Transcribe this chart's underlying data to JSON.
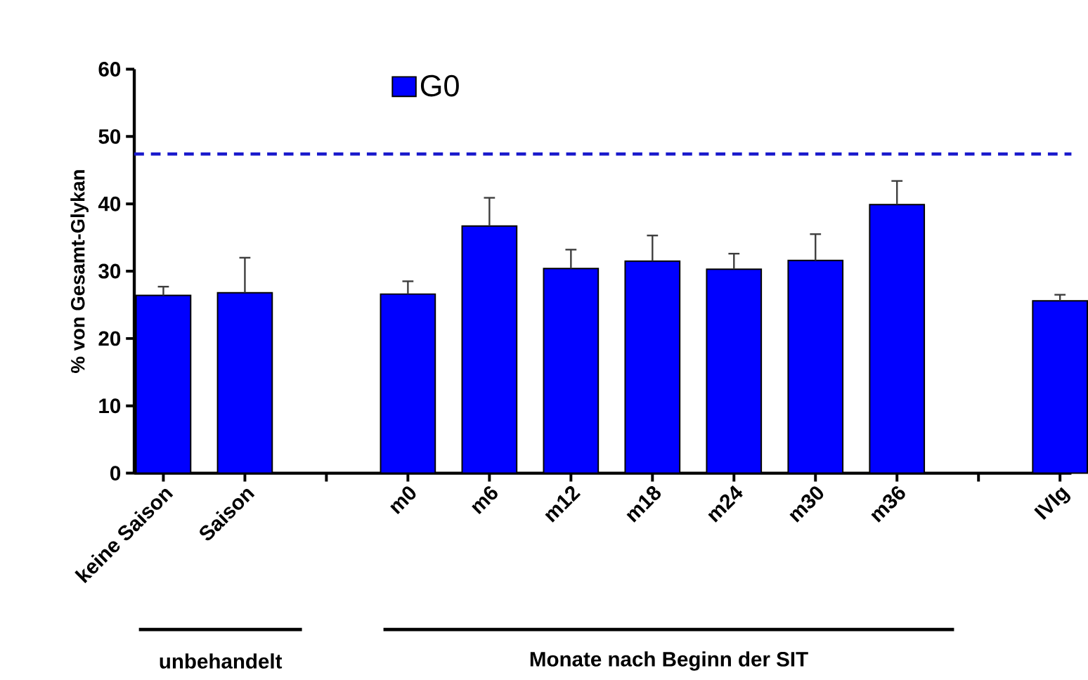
{
  "chart_data": {
    "type": "bar",
    "ylabel": "% von Gesamt-Glykan",
    "categories": [
      "keine Saison",
      "Saison",
      null,
      "m0",
      "m6",
      "m12",
      "m18",
      "m24",
      "m30",
      "m36",
      null,
      "IVIg"
    ],
    "series": [
      {
        "name": "G0",
        "color": "#0000ff",
        "values": [
          26.4,
          26.8,
          null,
          26.6,
          36.7,
          30.4,
          31.5,
          30.3,
          31.6,
          39.9,
          null,
          25.6
        ],
        "errors": [
          1.3,
          5.2,
          null,
          1.9,
          4.2,
          2.8,
          3.8,
          2.3,
          3.9,
          3.5,
          null,
          0.9
        ]
      }
    ],
    "ylim": [
      0,
      60
    ],
    "yticks": [
      0,
      10,
      20,
      30,
      40,
      50,
      60
    ],
    "ref_lines": [
      {
        "axis": "y",
        "value": 47.4,
        "color": "#1a1acc",
        "line_style": "dashed"
      }
    ],
    "annotations": [
      "unbehandelt",
      "Monate nach Beginn der SIT"
    ],
    "legend": "top"
  }
}
